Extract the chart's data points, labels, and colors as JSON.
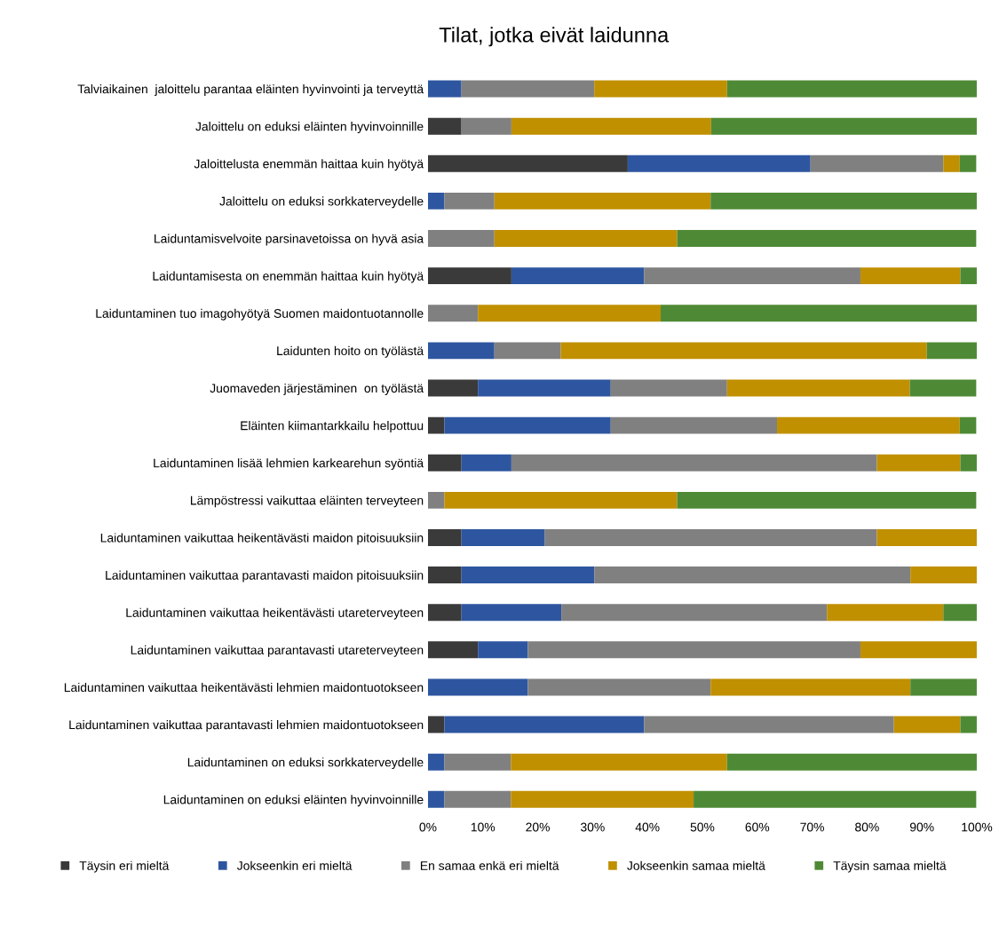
{
  "chart_data": {
    "type": "bar",
    "orientation": "horizontal",
    "stacked": true,
    "title": "Tilat, jotka eivät laidunna",
    "categories": [
      "Talviaikainen  jaloittelu parantaa eläinten hyvinvointi ja terveyttä",
      "Jaloittelu on eduksi eläinten hyvinvoinnille",
      "Jaloittelusta enemmän haittaa kuin hyötyä",
      "Jaloittelu on eduksi sorkkaterveydelle",
      "Laiduntamisvelvoite parsinavetoissa on hyvä asia",
      "Laiduntamisesta on enemmän haittaa kuin hyötyä",
      "Laiduntaminen tuo imagohyötyä Suomen maidontuotannolle",
      "Laidunten hoito on työlästä",
      "Juomaveden järjestäminen  on työlästä",
      "Eläinten kiimantarkkailu helpottuu",
      "Laiduntaminen lisää lehmien karkearehun syöntiä",
      "Lämpöstressi vaikuttaa eläinten terveyteen",
      "Laiduntaminen vaikuttaa heikentävästi maidon pitoisuuksiin",
      "Laiduntaminen vaikuttaa parantavasti maidon pitoisuuksiin",
      "Laiduntaminen vaikuttaa heikentävästi utareterveyteen",
      "Laiduntaminen vaikuttaa parantavasti utareterveyteen",
      "Laiduntaminen vaikuttaa heikentävästi lehmien maidontuotokseen",
      "Laiduntaminen vaikuttaa parantavasti lehmien maidontuotokseen",
      "Laiduntaminen on eduksi sorkkaterveydelle",
      "Laiduntaminen on eduksi eläinten hyvinvoinnille"
    ],
    "series": [
      {
        "name": "Täysin eri mieltä",
        "color": "#3a3a3a",
        "values": [
          0,
          6.1,
          36.4,
          0,
          0,
          15.2,
          0,
          0,
          9.1,
          3.0,
          6.1,
          0,
          6.1,
          6.1,
          6.1,
          9.1,
          0,
          3.0,
          0,
          0
        ]
      },
      {
        "name": "Jokseenkin eri mieltä",
        "color": "#2e56a0",
        "values": [
          6.1,
          0,
          33.3,
          3.0,
          0,
          24.2,
          0,
          12.1,
          24.2,
          30.3,
          9.1,
          0,
          15.2,
          24.2,
          18.2,
          9.1,
          18.2,
          36.4,
          3.0,
          3.0
        ]
      },
      {
        "name": "En samaa enkä eri mieltä",
        "color": "#808080",
        "values": [
          24.2,
          9.1,
          24.2,
          9.1,
          12.1,
          39.4,
          9.1,
          12.1,
          21.2,
          30.3,
          66.6,
          3.0,
          60.5,
          57.6,
          48.4,
          60.6,
          33.3,
          45.5,
          12.1,
          12.1
        ]
      },
      {
        "name": "Jokseenkin samaa mieltä",
        "color": "#c09000",
        "values": [
          24.2,
          36.4,
          3.0,
          39.4,
          33.3,
          18.2,
          33.3,
          66.7,
          33.3,
          33.3,
          15.2,
          42.4,
          18.2,
          12.1,
          21.2,
          21.2,
          36.4,
          12.1,
          39.4,
          33.3
        ]
      },
      {
        "name": "Täysin samaa mieltä",
        "color": "#4e8a35",
        "values": [
          45.5,
          48.4,
          3.0,
          48.5,
          54.5,
          3.0,
          57.6,
          9.1,
          12.1,
          3.0,
          3.0,
          54.5,
          0,
          0,
          6.1,
          0,
          12.1,
          3.0,
          45.5,
          51.5
        ]
      }
    ],
    "xlim": [
      0,
      100
    ],
    "xticks": [
      {
        "value": 0,
        "label": "0%"
      },
      {
        "value": 10,
        "label": "10%"
      },
      {
        "value": 20,
        "label": "20%"
      },
      {
        "value": 30,
        "label": "30%"
      },
      {
        "value": 40,
        "label": "40%"
      },
      {
        "value": 50,
        "label": "50%"
      },
      {
        "value": 60,
        "label": "60%"
      },
      {
        "value": 70,
        "label": "70%"
      },
      {
        "value": 80,
        "label": "80%"
      },
      {
        "value": 90,
        "label": "90%"
      },
      {
        "value": 100,
        "label": "100%"
      }
    ],
    "grid": false,
    "legend": "bottom"
  }
}
